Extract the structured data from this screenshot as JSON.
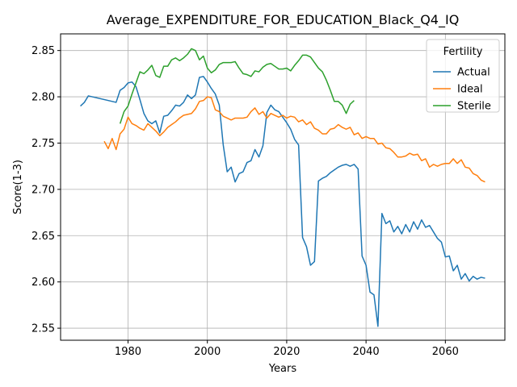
{
  "chart_data": {
    "type": "line",
    "title": "Average_EXPENDITURE_FOR_EDUCATION_Black_Q4_IQ",
    "xlabel": "Years",
    "ylabel": "Score(1-3)",
    "xlim": [
      1963,
      2075
    ],
    "ylim": [
      2.537,
      2.868
    ],
    "xticks": [
      1980,
      2000,
      2020,
      2040,
      2060
    ],
    "yticks": [
      2.55,
      2.6,
      2.65,
      2.7,
      2.75,
      2.8,
      2.85
    ],
    "grid": true,
    "legend": {
      "title": "Fertility",
      "placement": "upper right"
    },
    "series": [
      {
        "name": "Actual",
        "color": "#1f77b4",
        "x": [
          1968,
          1969,
          1970,
          1977,
          1978,
          1979,
          1980,
          1981,
          1982,
          1983,
          1984,
          1985,
          1986,
          1987,
          1988,
          1989,
          1990,
          1991,
          1992,
          1993,
          1994,
          1995,
          1996,
          1997,
          1998,
          1999,
          2000,
          2001,
          2002,
          2003,
          2004,
          2005,
          2006,
          2007,
          2008,
          2009,
          2010,
          2011,
          2012,
          2013,
          2014,
          2015,
          2016,
          2017,
          2018,
          2019,
          2020,
          2021,
          2022,
          2023,
          2024,
          2025,
          2026,
          2027,
          2028,
          2029,
          2030,
          2031,
          2032,
          2033,
          2034,
          2035,
          2036,
          2037,
          2038,
          2039,
          2040,
          2041,
          2042,
          2043,
          2044,
          2045,
          2046,
          2047,
          2048,
          2049,
          2050,
          2051,
          2052,
          2053,
          2054,
          2055,
          2056,
          2057,
          2058,
          2059,
          2060,
          2061,
          2062,
          2063,
          2064,
          2065,
          2066,
          2067,
          2068,
          2069,
          2070
        ],
        "y": [
          2.79,
          2.794,
          2.801,
          2.794,
          2.807,
          2.81,
          2.815,
          2.816,
          2.811,
          2.797,
          2.782,
          2.774,
          2.771,
          2.774,
          2.761,
          2.779,
          2.78,
          2.785,
          2.791,
          2.79,
          2.794,
          2.802,
          2.798,
          2.802,
          2.821,
          2.822,
          2.816,
          2.809,
          2.803,
          2.791,
          2.748,
          2.719,
          2.724,
          2.708,
          2.717,
          2.719,
          2.729,
          2.731,
          2.743,
          2.735,
          2.747,
          2.783,
          2.791,
          2.786,
          2.784,
          2.778,
          2.772,
          2.765,
          2.754,
          2.748,
          2.648,
          2.638,
          2.618,
          2.622,
          2.709,
          2.712,
          2.714,
          2.718,
          2.721,
          2.724,
          2.726,
          2.727,
          2.725,
          2.727,
          2.722,
          2.628,
          2.618,
          2.589,
          2.586,
          2.552,
          2.674,
          2.663,
          2.666,
          2.654,
          2.66,
          2.652,
          2.662,
          2.654,
          2.665,
          2.657,
          2.667,
          2.659,
          2.661,
          2.654,
          2.647,
          2.643,
          2.627,
          2.628,
          2.612,
          2.618,
          2.603,
          2.609,
          2.601,
          2.606,
          2.603,
          2.605,
          2.604
        ]
      },
      {
        "name": "Ideal",
        "color": "#ff7f0e",
        "x": [
          1974,
          1975,
          1976,
          1977,
          1978,
          1979,
          1980,
          1981,
          1982,
          1983,
          1984,
          1985,
          1986,
          1987,
          1988,
          1989,
          1990,
          1991,
          1992,
          1993,
          1994,
          1995,
          1996,
          1997,
          1998,
          1999,
          2000,
          2001,
          2002,
          2003,
          2004,
          2005,
          2006,
          2007,
          2008,
          2009,
          2010,
          2011,
          2012,
          2013,
          2014,
          2015,
          2016,
          2017,
          2018,
          2019,
          2020,
          2021,
          2022,
          2023,
          2024,
          2025,
          2026,
          2027,
          2028,
          2029,
          2030,
          2031,
          2032,
          2033,
          2034,
          2035,
          2036,
          2037,
          2038,
          2039,
          2040,
          2041,
          2042,
          2043,
          2044,
          2045,
          2046,
          2047,
          2048,
          2049,
          2050,
          2051,
          2052,
          2053,
          2054,
          2055,
          2056,
          2057,
          2058,
          2059,
          2060,
          2061,
          2062,
          2063,
          2064,
          2065,
          2066,
          2067,
          2068,
          2069,
          2070
        ],
        "y": [
          2.752,
          2.744,
          2.755,
          2.743,
          2.76,
          2.765,
          2.778,
          2.771,
          2.769,
          2.766,
          2.764,
          2.771,
          2.767,
          2.763,
          2.758,
          2.762,
          2.767,
          2.77,
          2.773,
          2.777,
          2.78,
          2.781,
          2.782,
          2.787,
          2.795,
          2.796,
          2.8,
          2.799,
          2.786,
          2.784,
          2.779,
          2.777,
          2.775,
          2.777,
          2.777,
          2.777,
          2.778,
          2.784,
          2.788,
          2.781,
          2.784,
          2.777,
          2.782,
          2.78,
          2.778,
          2.78,
          2.777,
          2.779,
          2.778,
          2.773,
          2.775,
          2.77,
          2.773,
          2.766,
          2.764,
          2.76,
          2.76,
          2.765,
          2.766,
          2.77,
          2.767,
          2.765,
          2.767,
          2.759,
          2.761,
          2.755,
          2.757,
          2.755,
          2.755,
          2.749,
          2.75,
          2.745,
          2.744,
          2.74,
          2.735,
          2.735,
          2.736,
          2.739,
          2.737,
          2.738,
          2.731,
          2.733,
          2.724,
          2.727,
          2.725,
          2.727,
          2.728,
          2.728,
          2.733,
          2.728,
          2.732,
          2.724,
          2.723,
          2.717,
          2.715,
          2.71,
          2.708
        ]
      },
      {
        "name": "Sterile",
        "color": "#2ca02c",
        "x": [
          1978,
          1979,
          1980,
          1981,
          1982,
          1983,
          1984,
          1985,
          1986,
          1987,
          1988,
          1989,
          1990,
          1991,
          1992,
          1993,
          1994,
          1995,
          1996,
          1997,
          1998,
          1999,
          2000,
          2001,
          2002,
          2003,
          2004,
          2005,
          2006,
          2007,
          2008,
          2009,
          2010,
          2011,
          2012,
          2013,
          2014,
          2015,
          2016,
          2017,
          2018,
          2019,
          2020,
          2021,
          2022,
          2023,
          2024,
          2025,
          2026,
          2027,
          2028,
          2029,
          2030,
          2031,
          2032,
          2033,
          2034,
          2035,
          2036,
          2037
        ],
        "y": [
          2.771,
          2.784,
          2.79,
          2.803,
          2.815,
          2.827,
          2.825,
          2.829,
          2.834,
          2.823,
          2.821,
          2.833,
          2.833,
          2.84,
          2.842,
          2.839,
          2.842,
          2.846,
          2.852,
          2.85,
          2.84,
          2.844,
          2.831,
          2.826,
          2.829,
          2.835,
          2.837,
          2.837,
          2.837,
          2.838,
          2.831,
          2.825,
          2.824,
          2.822,
          2.828,
          2.827,
          2.832,
          2.835,
          2.836,
          2.833,
          2.83,
          2.83,
          2.831,
          2.828,
          2.834,
          2.839,
          2.845,
          2.845,
          2.843,
          2.837,
          2.831,
          2.827,
          2.818,
          2.807,
          2.795,
          2.795,
          2.791,
          2.782,
          2.792,
          2.796
        ]
      }
    ]
  }
}
